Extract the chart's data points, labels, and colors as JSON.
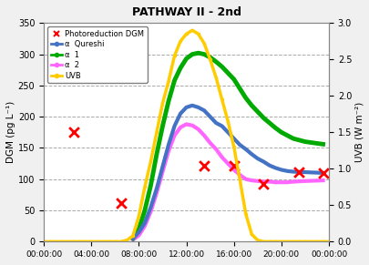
{
  "title": "PATHWAY II - 2nd",
  "xlabel": "",
  "ylabel_left": "DGM (pg L⁻¹)",
  "ylabel_right": "UVB (W m⁻²)",
  "ylim_left": [
    0,
    350
  ],
  "ylim_right": [
    0,
    3.0
  ],
  "yticks_left": [
    0,
    50,
    100,
    150,
    200,
    250,
    300,
    350
  ],
  "yticks_right": [
    0.0,
    0.5,
    1.0,
    1.5,
    2.0,
    2.5,
    3.0
  ],
  "xtick_labels": [
    "00:00:00",
    "04:00:00",
    "08:00:00",
    "12:00:00",
    "16:00:00",
    "20:00:00",
    "00:00:00"
  ],
  "xtick_positions": [
    0,
    4,
    8,
    12,
    16,
    20,
    24
  ],
  "background_color": "#f0f0f0",
  "plot_bg_color": "#ffffff",
  "grid_color": "#aaaaaa",
  "photoreduction_dgm_x": [
    2.5,
    6.5,
    13.5,
    16.0,
    18.5,
    21.5,
    23.5
  ],
  "photoreduction_dgm_y": [
    175,
    62,
    122,
    122,
    93,
    112,
    110
  ],
  "alpha_qureshi_x": [
    7.5,
    8.0,
    8.5,
    9.0,
    9.5,
    10.0,
    10.5,
    11.0,
    11.5,
    12.0,
    12.5,
    13.0,
    13.5,
    14.0,
    14.5,
    15.0,
    15.5,
    16.0,
    16.5,
    17.0,
    17.5,
    18.0,
    18.5,
    19.0,
    19.5,
    20.0,
    20.5,
    21.0,
    23.5
  ],
  "alpha_qureshi_y": [
    5,
    15,
    30,
    55,
    85,
    120,
    155,
    185,
    205,
    215,
    218,
    215,
    210,
    200,
    190,
    185,
    175,
    165,
    155,
    148,
    140,
    133,
    128,
    122,
    118,
    115,
    113,
    112,
    110
  ],
  "alpha1_x": [
    7.5,
    8.0,
    8.5,
    9.0,
    9.5,
    10.0,
    10.5,
    11.0,
    11.5,
    12.0,
    12.5,
    13.0,
    13.5,
    14.0,
    14.5,
    15.0,
    15.5,
    16.0,
    16.5,
    17.0,
    17.5,
    18.0,
    18.5,
    19.0,
    19.5,
    20.0,
    20.5,
    21.0,
    22.0,
    23.5
  ],
  "alpha1_y": [
    5,
    20,
    50,
    90,
    140,
    185,
    225,
    258,
    278,
    293,
    300,
    302,
    300,
    295,
    288,
    280,
    270,
    260,
    245,
    230,
    218,
    208,
    198,
    190,
    182,
    175,
    170,
    165,
    160,
    156
  ],
  "alpha2_x": [
    7.5,
    8.0,
    8.5,
    9.0,
    9.5,
    10.0,
    10.5,
    11.0,
    11.5,
    12.0,
    12.5,
    13.0,
    13.5,
    14.0,
    14.5,
    15.0,
    15.5,
    16.0,
    16.5,
    17.0,
    17.5,
    18.0,
    18.5,
    19.0,
    19.5,
    20.0,
    20.5,
    21.0,
    22.0,
    23.5
  ],
  "alpha2_y": [
    3,
    10,
    25,
    48,
    78,
    112,
    145,
    170,
    183,
    188,
    186,
    180,
    170,
    158,
    148,
    135,
    125,
    115,
    107,
    100,
    98,
    97,
    96,
    96,
    95,
    95,
    95,
    96,
    97,
    98
  ],
  "uvb_x": [
    0,
    0.5,
    1.0,
    1.5,
    2.0,
    2.5,
    3.0,
    3.5,
    4.0,
    4.5,
    5.0,
    5.5,
    6.0,
    6.5,
    7.0,
    7.5,
    8.0,
    8.5,
    9.0,
    9.5,
    10.0,
    10.5,
    11.0,
    11.5,
    12.0,
    12.5,
    13.0,
    13.5,
    14.0,
    14.5,
    15.0,
    15.5,
    16.0,
    16.5,
    17.0,
    17.5,
    18.0,
    18.5,
    19.0,
    19.5,
    20.0,
    20.5,
    21.0,
    21.5,
    22.0,
    22.5,
    23.0,
    23.5,
    24.0
  ],
  "uvb_y": [
    0,
    0,
    0,
    0,
    0,
    0,
    0,
    0,
    0,
    0,
    0,
    0,
    0,
    0,
    0.02,
    0.08,
    0.35,
    0.75,
    1.1,
    1.5,
    1.9,
    2.2,
    2.55,
    2.75,
    2.85,
    2.9,
    2.85,
    2.72,
    2.5,
    2.25,
    1.95,
    1.65,
    1.3,
    0.85,
    0.38,
    0.1,
    0.02,
    0,
    0,
    0,
    0,
    0,
    0,
    0,
    0,
    0,
    0,
    0,
    0
  ],
  "uvb_scale": 116.67,
  "colors": {
    "photoreduction": "#ff0000",
    "alpha_qureshi": "#4472c4",
    "alpha1": "#00aa00",
    "alpha2": "#ff66ff",
    "uvb": "#ffcc00"
  },
  "linewidths": {
    "alpha_qureshi": 3.0,
    "alpha1": 3.5,
    "alpha2": 3.0,
    "uvb": 2.5
  }
}
